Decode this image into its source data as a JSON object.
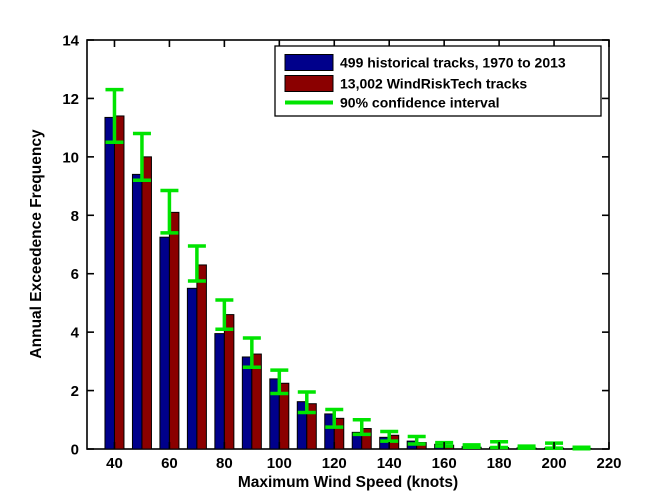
{
  "figure": {
    "background_color": "#ffffff",
    "axis_color": "#000000"
  },
  "chart_data": {
    "type": "bar",
    "title": "",
    "xlabel": "Maximum Wind Speed (knots)",
    "ylabel": "Annual Exceedence Frequency",
    "xlim": [
      30,
      220
    ],
    "ylim": [
      0,
      14
    ],
    "x_ticks": [
      40,
      60,
      80,
      100,
      120,
      140,
      160,
      180,
      200,
      220
    ],
    "y_ticks": [
      0,
      2,
      4,
      6,
      8,
      10,
      12,
      14
    ],
    "grid": false,
    "legend_position": "upper right",
    "categories": [
      40,
      50,
      60,
      70,
      80,
      90,
      100,
      110,
      120,
      130,
      140,
      150,
      160,
      170,
      180,
      190,
      200,
      210
    ],
    "series": [
      {
        "name": "499 historical tracks, 1970 to 2013",
        "color": "#00008b",
        "values": [
          11.35,
          9.4,
          7.25,
          5.5,
          3.95,
          3.15,
          2.4,
          1.62,
          1.2,
          0.57,
          0.4,
          0.27,
          0.16,
          0.08,
          0.06,
          0.04,
          0.03,
          0.02
        ]
      },
      {
        "name": "13,002 WindRiskTech tracks",
        "color": "#8b0000",
        "values": [
          11.4,
          10.0,
          8.1,
          6.3,
          4.6,
          3.25,
          2.25,
          1.55,
          1.05,
          0.7,
          0.47,
          0.22,
          0.13,
          0.06,
          0.05,
          0.03,
          0.03,
          0.02
        ]
      }
    ],
    "error_bars": {
      "name": "90% confidence interval",
      "color": "#00e400",
      "low": [
        10.5,
        9.2,
        7.4,
        5.75,
        4.1,
        2.8,
        1.9,
        1.25,
        0.75,
        0.5,
        0.27,
        0.17,
        0.1,
        0.06,
        0.05,
        0.03,
        0.03,
        0.01
      ],
      "high": [
        12.3,
        10.8,
        8.85,
        6.95,
        5.1,
        3.8,
        2.7,
        1.95,
        1.35,
        1.0,
        0.6,
        0.43,
        0.22,
        0.14,
        0.25,
        0.1,
        0.2,
        0.06
      ]
    }
  }
}
